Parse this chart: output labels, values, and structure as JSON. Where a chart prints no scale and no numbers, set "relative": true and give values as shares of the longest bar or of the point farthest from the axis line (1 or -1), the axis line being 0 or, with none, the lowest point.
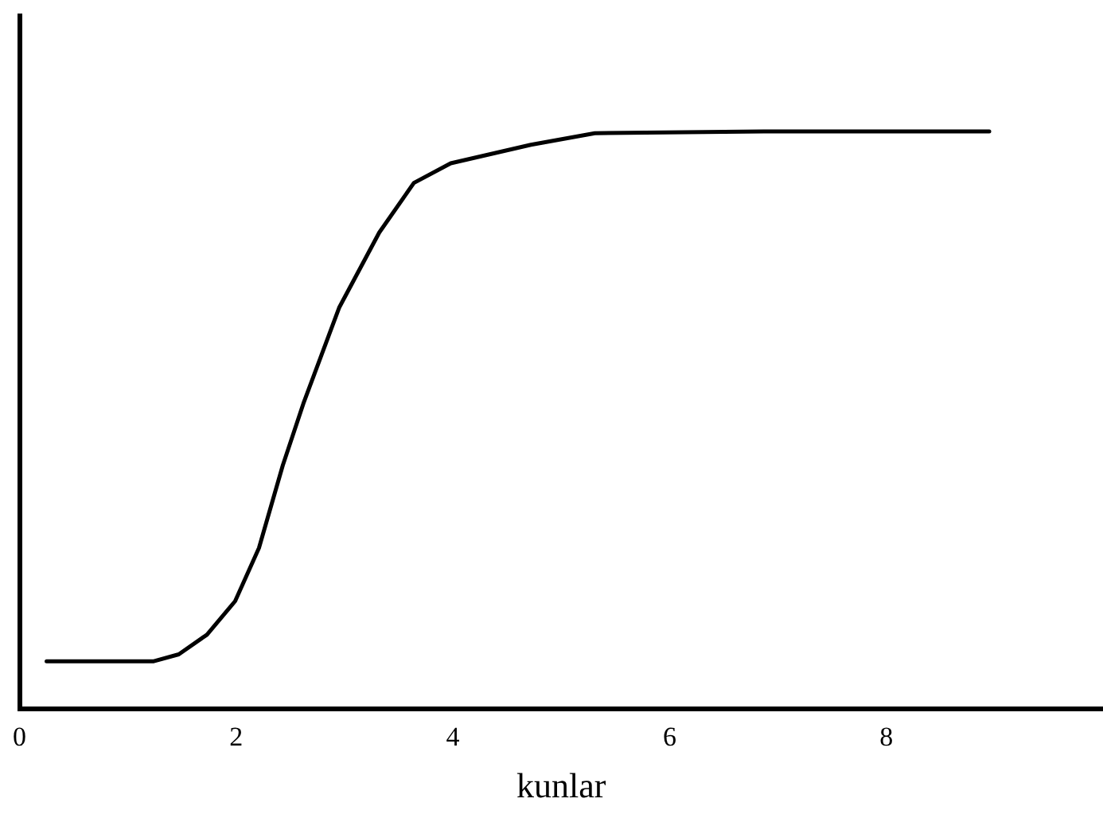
{
  "chart_data": {
    "type": "line",
    "xlabel": "kunlar",
    "relative": true,
    "xlim": [
      0,
      10
    ],
    "xticks": [
      0,
      2,
      4,
      6,
      8
    ],
    "grid": false,
    "legend": false,
    "marker": "none",
    "line_style": "solid",
    "series": [
      {
        "color": "#000000",
        "x": [
          0.25,
          1.24,
          1.47,
          1.73,
          1.99,
          2.21,
          2.43,
          2.62,
          2.95,
          3.32,
          3.64,
          3.98,
          4.72,
          5.31,
          6.87,
          8.95
        ],
        "values": [
          0.083,
          0.083,
          0.095,
          0.129,
          0.187,
          0.279,
          0.422,
          0.529,
          0.695,
          0.825,
          0.911,
          0.945,
          0.977,
          0.997,
          1,
          1
        ]
      }
    ]
  }
}
